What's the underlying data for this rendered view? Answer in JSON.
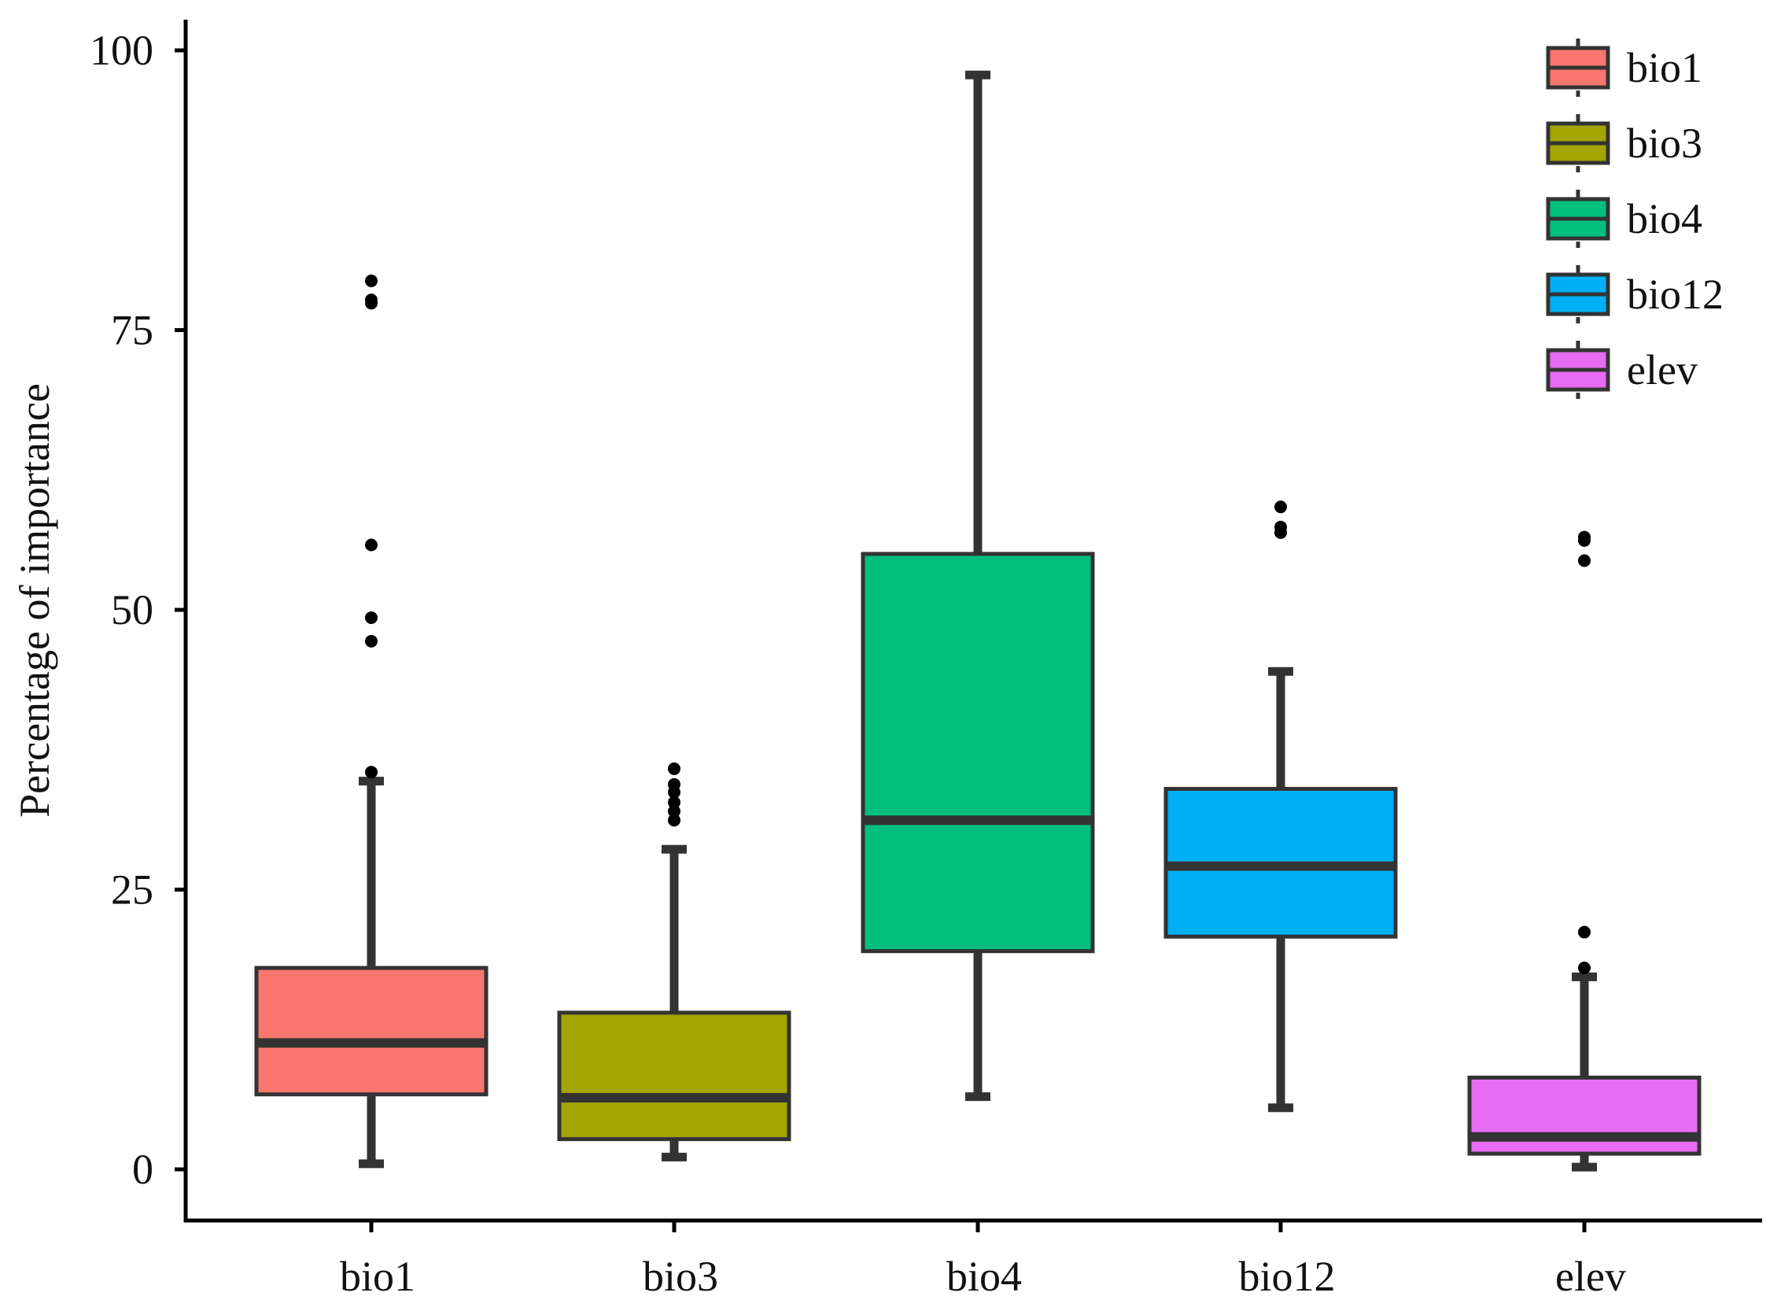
{
  "chart_data": {
    "type": "boxplot",
    "title": "",
    "xlabel": "",
    "ylabel": "Percentage of importance",
    "ylim": [
      -4.5,
      104
    ],
    "yticks": [
      0,
      25,
      50,
      75,
      100
    ],
    "ytick_labels": [
      "0",
      "25",
      "50",
      "75",
      "100"
    ],
    "categories": [
      "bio1",
      "bio3",
      "bio4",
      "bio12",
      "elev"
    ],
    "grid": false,
    "legend_position": "top-right",
    "series": [
      {
        "name": "bio1",
        "color": "#F8766D",
        "whisker_low": 0.5,
        "q1": 6.7,
        "median": 11.3,
        "q3": 18.0,
        "whisker_high": 34.7,
        "outliers": [
          35.5,
          47.2,
          49.3,
          55.8,
          77.4,
          77.7,
          79.4
        ]
      },
      {
        "name": "bio3",
        "color": "#A3A500",
        "whisker_low": 1.1,
        "q1": 2.7,
        "median": 6.4,
        "q3": 14.0,
        "whisker_high": 28.6,
        "outliers": [
          31.2,
          32.0,
          32.8,
          33.7,
          34.4,
          35.8
        ]
      },
      {
        "name": "bio4",
        "color": "#00BF7D",
        "whisker_low": 6.5,
        "q1": 19.5,
        "median": 31.2,
        "q3": 55.0,
        "whisker_high": 97.8,
        "outliers": []
      },
      {
        "name": "bio12",
        "color": "#00B0F6",
        "whisker_low": 5.5,
        "q1": 20.8,
        "median": 27.1,
        "q3": 34.0,
        "whisker_high": 44.5,
        "outliers": [
          56.9,
          57.4,
          59.2
        ]
      },
      {
        "name": "elev",
        "color": "#E76BF3",
        "whisker_low": 0.2,
        "q1": 1.4,
        "median": 2.9,
        "q3": 8.2,
        "whisker_high": 17.2,
        "outliers": [
          18.0,
          21.2,
          54.4,
          56.2,
          56.5
        ]
      }
    ],
    "legend": {
      "entries": [
        "bio1",
        "bio3",
        "bio4",
        "bio12",
        "elev"
      ]
    }
  }
}
